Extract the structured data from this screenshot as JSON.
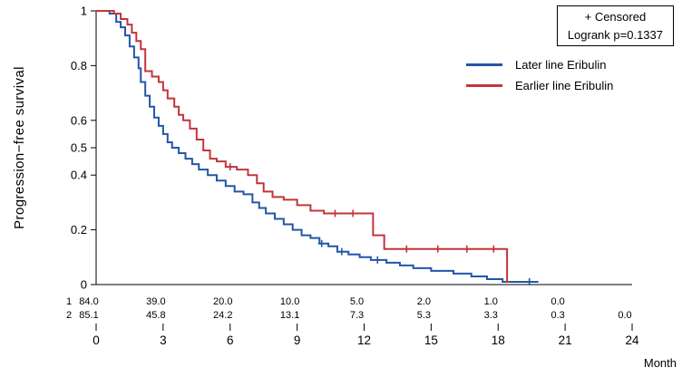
{
  "chart_data": {
    "type": "line",
    "subtype": "kaplan_meier_step",
    "title": "",
    "xlabel": "Month",
    "ylabel": "Progression−free survival",
    "xlim": [
      0,
      24
    ],
    "ylim": [
      0,
      1
    ],
    "grid": false,
    "legend_position": "right-upper",
    "x_ticks": [
      0,
      3,
      6,
      9,
      12,
      15,
      18,
      21,
      24
    ],
    "x_tick_labels": [
      "0",
      "3",
      "6",
      "9",
      "12",
      "15",
      "18",
      "21",
      "24"
    ],
    "y_ticks": [
      0,
      0.2,
      0.4,
      0.5,
      0.6,
      0.8,
      1
    ],
    "y_tick_labels": [
      "0",
      "0.2",
      "0.4",
      "0.5",
      "0.6",
      "0.8",
      "1"
    ],
    "annotations": [
      "+ Censored",
      "Logrank p=0.1337"
    ],
    "series": [
      {
        "name": "Later line Eribulin",
        "color": "#2356a7",
        "points": [
          [
            0,
            1
          ],
          [
            0.6,
            0.99
          ],
          [
            0.9,
            0.96
          ],
          [
            1.1,
            0.94
          ],
          [
            1.3,
            0.91
          ],
          [
            1.5,
            0.87
          ],
          [
            1.7,
            0.83
          ],
          [
            1.9,
            0.79
          ],
          [
            2.0,
            0.74
          ],
          [
            2.2,
            0.69
          ],
          [
            2.4,
            0.65
          ],
          [
            2.6,
            0.61
          ],
          [
            2.8,
            0.58
          ],
          [
            3.0,
            0.55
          ],
          [
            3.2,
            0.52
          ],
          [
            3.4,
            0.5
          ],
          [
            3.7,
            0.48
          ],
          [
            4.0,
            0.46
          ],
          [
            4.3,
            0.44
          ],
          [
            4.6,
            0.42
          ],
          [
            5.0,
            0.4
          ],
          [
            5.4,
            0.38
          ],
          [
            5.8,
            0.36
          ],
          [
            6.2,
            0.34
          ],
          [
            6.6,
            0.33
          ],
          [
            7.0,
            0.3
          ],
          [
            7.3,
            0.28
          ],
          [
            7.6,
            0.26
          ],
          [
            8.0,
            0.24
          ],
          [
            8.4,
            0.22
          ],
          [
            8.8,
            0.2
          ],
          [
            9.2,
            0.18
          ],
          [
            9.6,
            0.17
          ],
          [
            10.0,
            0.15
          ],
          [
            10.4,
            0.14
          ],
          [
            10.8,
            0.12
          ],
          [
            11.3,
            0.11
          ],
          [
            11.8,
            0.1
          ],
          [
            12.3,
            0.09
          ],
          [
            13.0,
            0.08
          ],
          [
            13.6,
            0.07
          ],
          [
            14.2,
            0.06
          ],
          [
            15.0,
            0.05
          ],
          [
            16.0,
            0.04
          ],
          [
            16.8,
            0.03
          ],
          [
            17.5,
            0.02
          ],
          [
            18.2,
            0.01
          ],
          [
            19.8,
            0.01
          ]
        ],
        "censors": [
          [
            10.1,
            0.15
          ],
          [
            11.0,
            0.12
          ],
          [
            12.6,
            0.09
          ],
          [
            19.4,
            0.01
          ]
        ]
      },
      {
        "name": "Earlier line Eribulin",
        "color": "#c3353b",
        "points": [
          [
            0,
            1
          ],
          [
            0.8,
            0.99
          ],
          [
            1.1,
            0.97
          ],
          [
            1.4,
            0.95
          ],
          [
            1.6,
            0.92
          ],
          [
            1.8,
            0.89
          ],
          [
            2.0,
            0.86
          ],
          [
            2.2,
            0.78
          ],
          [
            2.5,
            0.76
          ],
          [
            2.8,
            0.74
          ],
          [
            3.0,
            0.71
          ],
          [
            3.2,
            0.68
          ],
          [
            3.5,
            0.65
          ],
          [
            3.7,
            0.62
          ],
          [
            3.9,
            0.6
          ],
          [
            4.2,
            0.57
          ],
          [
            4.5,
            0.53
          ],
          [
            4.8,
            0.49
          ],
          [
            5.1,
            0.46
          ],
          [
            5.4,
            0.45
          ],
          [
            5.8,
            0.43
          ],
          [
            6.3,
            0.42
          ],
          [
            6.8,
            0.4
          ],
          [
            7.2,
            0.37
          ],
          [
            7.5,
            0.34
          ],
          [
            7.9,
            0.32
          ],
          [
            8.4,
            0.31
          ],
          [
            9.0,
            0.29
          ],
          [
            9.6,
            0.27
          ],
          [
            10.2,
            0.26
          ],
          [
            12.4,
            0.18
          ],
          [
            12.9,
            0.13
          ],
          [
            18.4,
            0.01
          ],
          [
            18.5,
            0.01
          ]
        ],
        "censors": [
          [
            6.0,
            0.43
          ],
          [
            10.7,
            0.26
          ],
          [
            11.5,
            0.26
          ],
          [
            13.9,
            0.13
          ],
          [
            15.3,
            0.13
          ],
          [
            16.6,
            0.13
          ],
          [
            17.8,
            0.13
          ]
        ]
      }
    ],
    "at_risk_table": {
      "rows": [
        {
          "label": "1",
          "months": [
            0,
            3,
            6,
            9,
            12,
            15,
            18,
            21
          ],
          "values": [
            "84.0",
            "39.0",
            "20.0",
            "10.0",
            "5.0",
            "2.0",
            "1.0",
            "0.0"
          ]
        },
        {
          "label": "2",
          "months": [
            0,
            3,
            6,
            9,
            12,
            15,
            18,
            21,
            24
          ],
          "values": [
            "85.1",
            "45.8",
            "24.2",
            "13.1",
            "7.3",
            "5.3",
            "3.3",
            "0.3",
            "0.0"
          ]
        }
      ]
    }
  }
}
